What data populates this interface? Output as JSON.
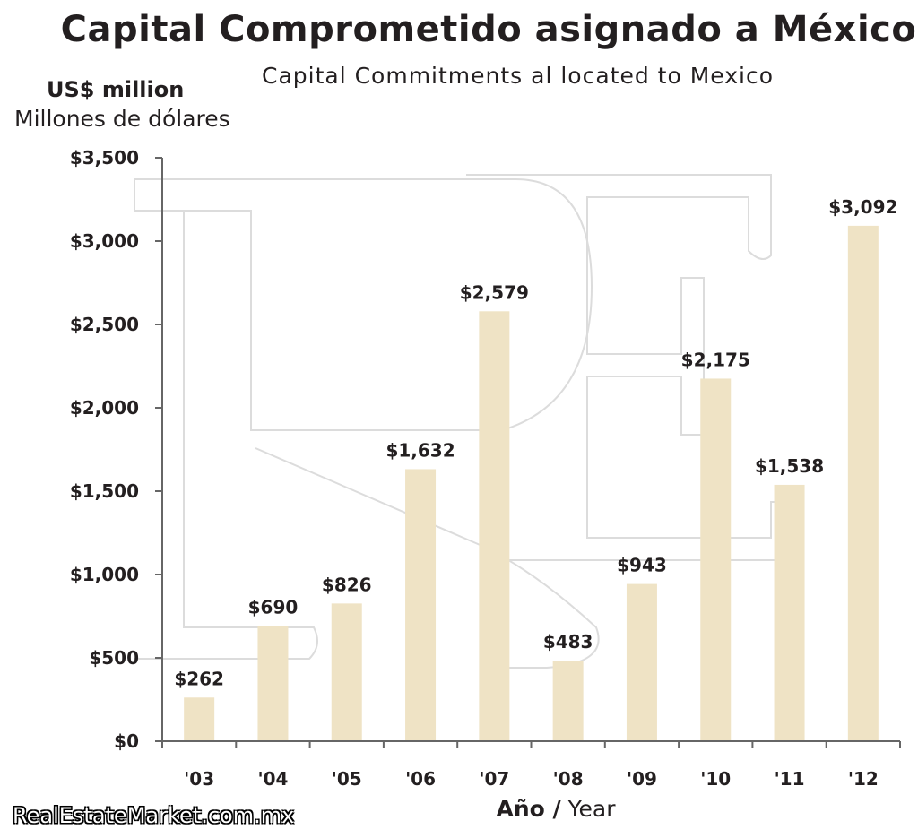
{
  "chart_data": {
    "type": "bar",
    "title": "Capital Comprometido asignado a México",
    "subtitle": "Capital Commitments al located to Mexico",
    "ylabel_en": "US$ million",
    "ylabel_es": "Millones de dólares",
    "xlabel_es": "Año /",
    "xlabel_en": "Year",
    "categories": [
      "'03",
      "'04",
      "'05",
      "'06",
      "'07",
      "'08",
      "'09",
      "'10",
      "'11",
      "'12"
    ],
    "values": [
      262,
      690,
      826,
      1632,
      2579,
      483,
      943,
      2175,
      1538,
      3092
    ],
    "data_labels": [
      "$262",
      "$690",
      "$826",
      "$1,632",
      "$2,579",
      "$483",
      "$943",
      "$2,175",
      "$1,538",
      "$3,092"
    ],
    "ylim": [
      0,
      3500
    ],
    "yticks": [
      0,
      500,
      1000,
      1500,
      2000,
      2500,
      3000,
      3500
    ],
    "ytick_labels": [
      "$0",
      "$500",
      "$1,000",
      "$1,500",
      "$2,000",
      "$2,500",
      "$3,000",
      "$3,500"
    ],
    "grid": false,
    "legend": "none",
    "bar_color": "#efe3c5",
    "watermark": "RE",
    "source": "RealEstateMarket.com.mx"
  }
}
